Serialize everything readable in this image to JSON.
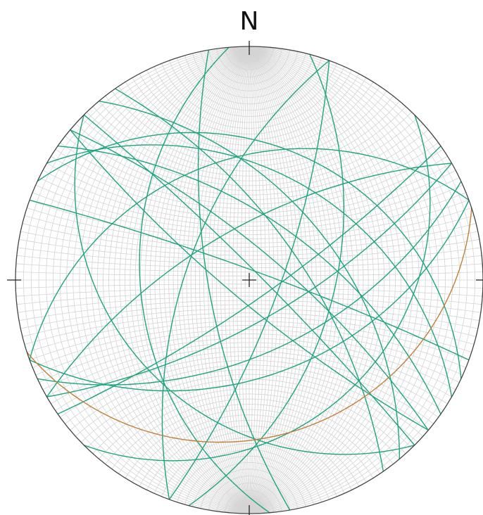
{
  "chart_data": {
    "type": "stereonet",
    "north_label": "N",
    "series": [
      {
        "color": "#1fa57e",
        "strikes": [
          300,
          305,
          310,
          295,
          315,
          320,
          60,
          65,
          55,
          70,
          240,
          250,
          20,
          15,
          170,
          175,
          200,
          130,
          135,
          290,
          45,
          325
        ],
        "dips": [
          40,
          60,
          75,
          30,
          85,
          50,
          70,
          55,
          80,
          45,
          65,
          35,
          75,
          50,
          70,
          40,
          60,
          80,
          30,
          85,
          25,
          65
        ]
      },
      {
        "color": "#c0803a",
        "strikes": [
          72
        ],
        "dips": [
          22
        ]
      }
    ]
  }
}
